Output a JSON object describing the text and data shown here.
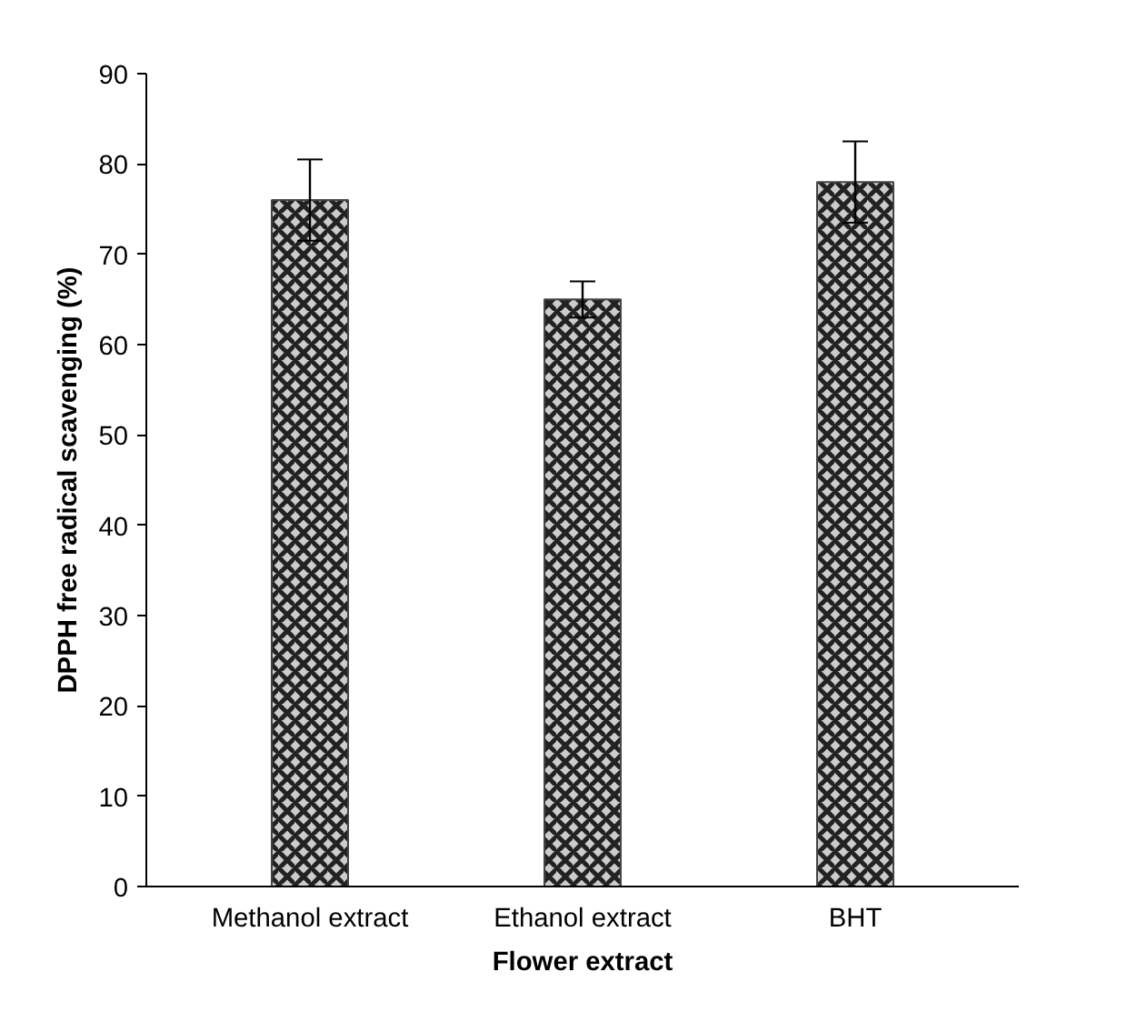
{
  "chart_data": {
    "type": "bar",
    "xlabel": "Flower extract",
    "ylabel": "DPPH free radical scavenging (%)",
    "categories": [
      "Methanol extract",
      "Ethanol extract",
      "BHT"
    ],
    "values": [
      76,
      65,
      78
    ],
    "errors": [
      4.5,
      2,
      4.5
    ],
    "color": "#cccccc",
    "ylim": [
      0,
      90
    ],
    "yticks": [
      0,
      10,
      20,
      30,
      40,
      50,
      60,
      70,
      80,
      90
    ],
    "grid": false
  }
}
